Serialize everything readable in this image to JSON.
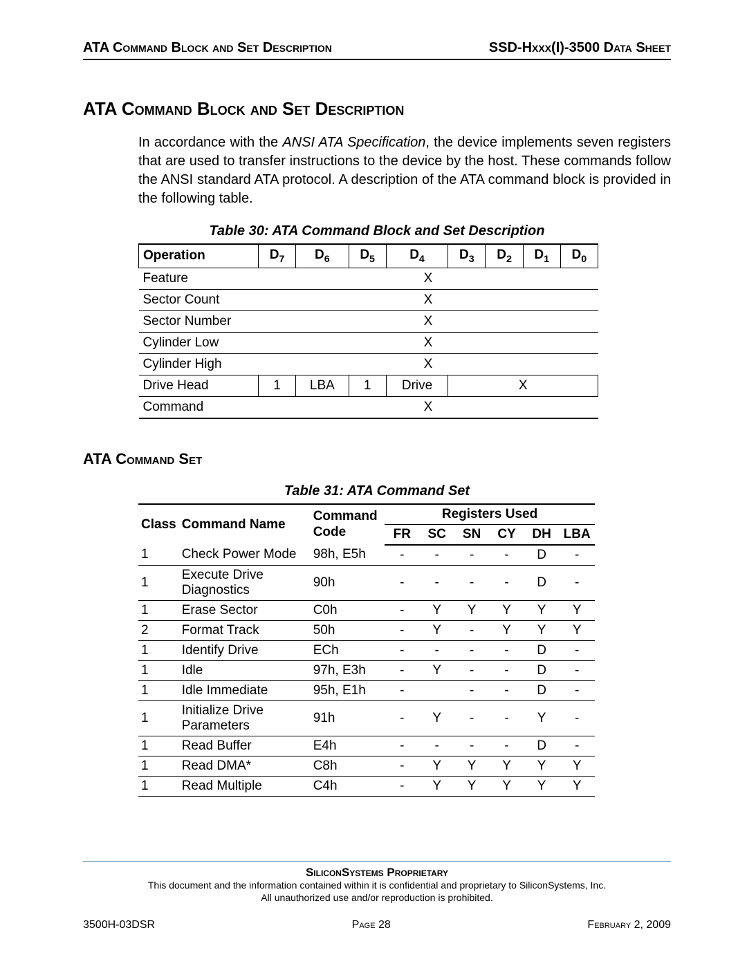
{
  "header": {
    "left": "ATA Command Block and Set Description",
    "right": "SSD-Hxxx(I)-3500 Data Sheet"
  },
  "title1": "ATA Command Block and Set Description",
  "para_pre": "In accordance with the ",
  "para_ital": "ANSI ATA Specification",
  "para_post": ", the device implements seven registers that are used to transfer instructions to the device by the host. These commands follow the ANSI standard ATA protocol. A description of the ATA command block is provided in the following table.",
  "caption30": "Table 30:  ATA Command Block and Set Description",
  "t30": {
    "op": "Operation",
    "d": [
      "D",
      "D",
      "D",
      "D",
      "D",
      "D",
      "D",
      "D"
    ],
    "sub": [
      "7",
      "6",
      "5",
      "4",
      "3",
      "2",
      "1",
      "0"
    ],
    "rows": [
      {
        "op": "Feature",
        "x": "X"
      },
      {
        "op": "Sector Count",
        "x": "X"
      },
      {
        "op": "Sector Number",
        "x": "X"
      },
      {
        "op": "Cylinder Low",
        "x": "X"
      },
      {
        "op": "Cylinder High",
        "x": "X"
      }
    ],
    "dh": {
      "op": "Drive Head",
      "c": [
        "1",
        "LBA",
        "1",
        "Drive",
        "X"
      ]
    },
    "cmd": {
      "op": "Command",
      "x": "X"
    }
  },
  "title2": "ATA Command Set",
  "caption31": "Table 31:  ATA Command Set",
  "t31": {
    "h_class": "Class",
    "h_name": "Command Name",
    "h_code": "Command Code",
    "h_reg": "Registers Used",
    "regs": [
      "FR",
      "SC",
      "SN",
      "CY",
      "DH",
      "LBA"
    ],
    "rows": [
      {
        "c": "1",
        "n": "Check Power Mode",
        "code": "98h, E5h",
        "r": [
          "-",
          "-",
          "-",
          "-",
          "D",
          "-"
        ]
      },
      {
        "c": "1",
        "n": "Execute Drive Diagnostics",
        "code": "90h",
        "r": [
          "-",
          "-",
          "-",
          "-",
          "D",
          "-"
        ]
      },
      {
        "c": "1",
        "n": "Erase Sector",
        "code": "C0h",
        "r": [
          "-",
          "Y",
          "Y",
          "Y",
          "Y",
          "Y"
        ]
      },
      {
        "c": "2",
        "n": "Format Track",
        "code": "50h",
        "r": [
          "-",
          "Y",
          "-",
          "Y",
          "Y",
          "Y"
        ]
      },
      {
        "c": "1",
        "n": "Identify Drive",
        "code": "ECh",
        "r": [
          "-",
          "-",
          "-",
          "-",
          "D",
          "-"
        ]
      },
      {
        "c": "1",
        "n": "Idle",
        "code": "97h, E3h",
        "r": [
          "-",
          "Y",
          "-",
          "-",
          "D",
          "-"
        ]
      },
      {
        "c": "1",
        "n": "Idle Immediate",
        "code": "95h, E1h",
        "r": [
          "-",
          "",
          "-",
          "-",
          "D",
          "-"
        ]
      },
      {
        "c": "1",
        "n": "Initialize Drive Parameters",
        "code": "91h",
        "r": [
          "-",
          "Y",
          "-",
          "-",
          "Y",
          "-"
        ]
      },
      {
        "c": "1",
        "n": "Read Buffer",
        "code": "E4h",
        "r": [
          "-",
          "-",
          "-",
          "-",
          "D",
          "-"
        ]
      },
      {
        "c": "1",
        "n": "Read DMA*",
        "code": "C8h",
        "r": [
          "-",
          "Y",
          "Y",
          "Y",
          "Y",
          "Y"
        ]
      },
      {
        "c": "1",
        "n": "Read Multiple",
        "code": "C4h",
        "r": [
          "-",
          "Y",
          "Y",
          "Y",
          "Y",
          "Y"
        ]
      }
    ]
  },
  "footer": {
    "prop": "SiliconSystems Proprietary",
    "l1": "This document and the information contained within it is confidential and proprietary to SiliconSystems, Inc.",
    "l2": "All unauthorized use and/or reproduction is prohibited.",
    "left": "3500H-03DSR",
    "center": "Page 28",
    "right": "February 2, 2009"
  }
}
